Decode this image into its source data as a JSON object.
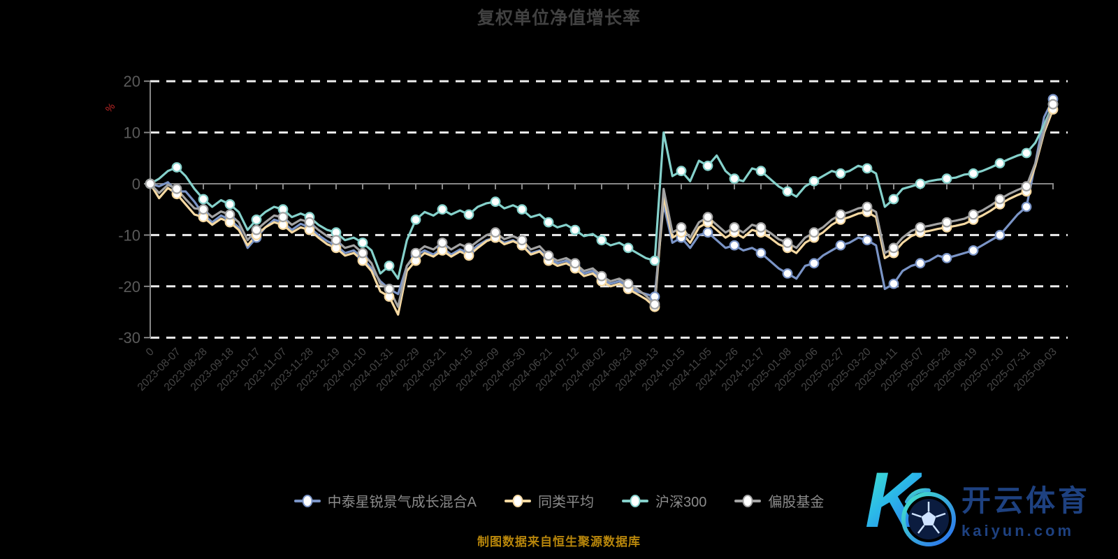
{
  "title": "复权单位净值增长率",
  "caption": "制图数据来自恒生聚源数据库",
  "axis": {
    "unit_label": "%",
    "unit_color": "#C62828"
  },
  "watermark": {
    "letter": "K",
    "brand_cn": "开云体育",
    "brand_domain": "kaiyun.com",
    "text_color": "#1e4180",
    "gradient_start": "#45e6c8",
    "gradient_end": "#2a6df0"
  },
  "chart_data": {
    "type": "line",
    "title": "复权单位净值增长率",
    "ylabel": "%",
    "ylim": [
      -30,
      20
    ],
    "yticks": [
      20,
      10,
      0,
      -10,
      -20,
      -30
    ],
    "grid": "horizontal dashed white, solid gray zero line",
    "legend_position": "bottom",
    "marker_every": 3,
    "marker_fill": "#ffffff",
    "categories": [
      "0",
      "2023-08-07",
      "2023-08-28",
      "2023-09-18",
      "2023-10-17",
      "2023-11-07",
      "2023-11-28",
      "2023-12-19",
      "2024-01-10",
      "2024-01-31",
      "2024-02-29",
      "2024-03-21",
      "2024-04-15",
      "2024-05-09",
      "2024-05-30",
      "2024-06-21",
      "2024-07-12",
      "2024-08-02",
      "2024-08-23",
      "2024-09-13",
      "2024-10-15",
      "2024-11-05",
      "2024-11-26",
      "2024-12-17",
      "2025-01-08",
      "2025-02-06",
      "2025-02-27",
      "2025-03-20",
      "2025-04-11",
      "2025-05-07",
      "2025-05-28",
      "2025-06-19",
      "2025-07-10",
      "2025-07-31",
      "2025-09-03"
    ],
    "series": [
      {
        "name": "中泰星锐景气成长混合A",
        "color": "#7A94C6",
        "values": [
          0,
          -0.5,
          0.3,
          -1.5,
          -1.5,
          -3.5,
          -6,
          -7.5,
          -6.2,
          -7,
          -8.5,
          -12.5,
          -10.5,
          -8.5,
          -7,
          -7.5,
          -9,
          -7.8,
          -8.5,
          -10,
          -11.2,
          -12,
          -13.5,
          -13,
          -14.5,
          -16.5,
          -19,
          -20.5,
          -21.5,
          -16,
          -14,
          -13,
          -13.8,
          -12.5,
          -13.8,
          -12.8,
          -13.5,
          -12,
          -11,
          -10.5,
          -11.5,
          -11,
          -12,
          -13.5,
          -13,
          -14.5,
          -15.5,
          -15,
          -16,
          -17.5,
          -17,
          -18.5,
          -19.5,
          -19,
          -20,
          -21,
          -21.5,
          -22,
          -4,
          -11.5,
          -10.5,
          -12.5,
          -10,
          -9.5,
          -11,
          -12.5,
          -12,
          -13,
          -12.5,
          -13.5,
          -15,
          -16.5,
          -17.5,
          -18.5,
          -16,
          -15.5,
          -14,
          -13,
          -12,
          -11.5,
          -10.5,
          -11,
          -12,
          -20.5,
          -19.5,
          -17,
          -16,
          -15.5,
          -15,
          -14,
          -14.5,
          -14,
          -13.5,
          -13,
          -12,
          -11,
          -10,
          -8,
          -6,
          -4.5,
          4,
          13,
          16.5
        ]
      },
      {
        "name": "同类平均",
        "color": "#F6D9A2",
        "values": [
          0,
          -2.8,
          -0.8,
          -2,
          -4,
          -6,
          -6.5,
          -8,
          -6.8,
          -7.5,
          -9,
          -12,
          -10,
          -8.5,
          -7.5,
          -8,
          -9.5,
          -8.5,
          -9,
          -10.5,
          -11.8,
          -12.5,
          -14,
          -13.5,
          -15,
          -17,
          -21,
          -22,
          -25.5,
          -17,
          -15,
          -13.5,
          -14.2,
          -13,
          -14.2,
          -13.2,
          -14,
          -12.5,
          -11.2,
          -10.5,
          -11.8,
          -11.2,
          -12,
          -13.8,
          -13.2,
          -15,
          -16,
          -15.5,
          -16.5,
          -18,
          -17.5,
          -19,
          -20,
          -19.5,
          -20.5,
          -21.5,
          -22.5,
          -24,
          -2.5,
          -10.5,
          -9.5,
          -11.5,
          -8.5,
          -7.5,
          -9,
          -10.5,
          -9.5,
          -10.5,
          -9,
          -9.5,
          -10.5,
          -11.8,
          -12.5,
          -13.5,
          -11.5,
          -10.5,
          -9.5,
          -8,
          -7,
          -6.5,
          -5.8,
          -5.5,
          -6.5,
          -14.5,
          -13.5,
          -11.5,
          -10.2,
          -9.5,
          -9.2,
          -8.8,
          -8.5,
          -8.2,
          -7.8,
          -7,
          -6.2,
          -5.2,
          -4,
          -3,
          -2.2,
          -1.5,
          3.5,
          10,
          14.5
        ]
      },
      {
        "name": "沪深300",
        "color": "#85D1CB",
        "values": [
          0,
          1,
          2.5,
          3.2,
          1.5,
          -1,
          -3,
          -4.5,
          -3.2,
          -4,
          -5.5,
          -9,
          -7,
          -5.5,
          -4.5,
          -5,
          -6.5,
          -5.8,
          -6.5,
          -8,
          -9,
          -9.5,
          -11,
          -10.5,
          -11.5,
          -13,
          -17.5,
          -16,
          -18.5,
          -11,
          -7,
          -5.5,
          -6.2,
          -5,
          -6,
          -5.2,
          -6,
          -4.5,
          -3.8,
          -3.5,
          -4.8,
          -4.2,
          -5,
          -6.5,
          -6,
          -7.5,
          -8.5,
          -8,
          -9,
          -10.2,
          -9.8,
          -11,
          -12,
          -11.5,
          -12.5,
          -13.5,
          -14.5,
          -15,
          10,
          1.5,
          2.5,
          0.5,
          4.5,
          3.5,
          5.5,
          2.5,
          1,
          0.5,
          3,
          2.5,
          1,
          -0.5,
          -1.5,
          -2.5,
          -0.5,
          0.5,
          1.5,
          2.5,
          2,
          2.5,
          3.5,
          3,
          2,
          -4.5,
          -3,
          -1,
          -0.5,
          0,
          0.5,
          0.8,
          1,
          1.2,
          1.8,
          2,
          2.5,
          3.2,
          4,
          4.8,
          5.5,
          6,
          8,
          11.5,
          15.5
        ]
      },
      {
        "name": "偏股基金",
        "color": "#A3A3A3",
        "values": [
          0,
          -1.8,
          -0.2,
          -1,
          -3,
          -4.8,
          -5,
          -6.5,
          -5.4,
          -6,
          -7.5,
          -11,
          -9,
          -7.5,
          -6.2,
          -6.5,
          -8,
          -7,
          -7.5,
          -9,
          -10.2,
          -11,
          -12.5,
          -12,
          -13.5,
          -15.5,
          -19.5,
          -20.5,
          -24,
          -16,
          -13.5,
          -12.2,
          -12.8,
          -11.5,
          -12.8,
          -11.8,
          -12.5,
          -11.2,
          -10,
          -9.5,
          -10.8,
          -10.2,
          -11,
          -12.8,
          -12.2,
          -14,
          -15,
          -14.5,
          -15.5,
          -17,
          -16.5,
          -18,
          -19,
          -18.5,
          -19.5,
          -20.5,
          -21.8,
          -23.5,
          -1,
          -9.5,
          -8.5,
          -10.5,
          -7.5,
          -6.5,
          -8,
          -9.5,
          -8.5,
          -9.5,
          -8,
          -8.5,
          -9.5,
          -10.8,
          -11.5,
          -12.5,
          -10.5,
          -9.5,
          -8.5,
          -7,
          -6,
          -5.5,
          -4.8,
          -4.5,
          -5.5,
          -13.5,
          -12.5,
          -10.5,
          -9.2,
          -8.5,
          -8.2,
          -7.8,
          -7.5,
          -7.2,
          -6.8,
          -6,
          -5.2,
          -4.2,
          -3,
          -2,
          -1.2,
          -0.5,
          4,
          10.5,
          15.5
        ]
      }
    ]
  }
}
